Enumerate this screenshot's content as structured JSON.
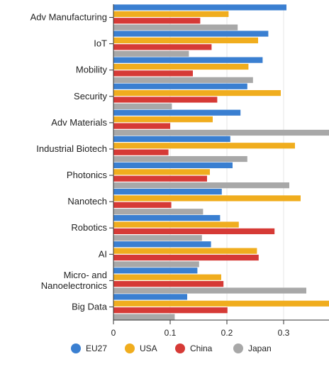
{
  "chart_data": {
    "type": "bar",
    "orientation": "horizontal",
    "categories": [
      [
        "Adv Manufacturing"
      ],
      [
        "IoT"
      ],
      [
        "Mobility"
      ],
      [
        "Security"
      ],
      [
        "Adv Materials"
      ],
      [
        "Industrial Biotech"
      ],
      [
        "Photonics"
      ],
      [
        "Nanotech"
      ],
      [
        "Robotics"
      ],
      [
        "AI"
      ],
      [
        "Micro- and",
        "Nanoelectronics"
      ],
      [
        "Big Data"
      ]
    ],
    "series": [
      {
        "name": "EU27",
        "color": "#3a7fd1",
        "values": [
          0.305,
          0.273,
          0.263,
          0.236,
          0.224,
          0.206,
          0.21,
          0.191,
          0.188,
          0.172,
          0.148,
          0.13
        ]
      },
      {
        "name": "USA",
        "color": "#f0ad1e",
        "values": [
          0.203,
          0.255,
          0.238,
          0.295,
          0.175,
          0.32,
          0.17,
          0.33,
          0.221,
          0.253,
          0.19,
          0.39
        ]
      },
      {
        "name": "China",
        "color": "#d63a36",
        "values": [
          0.153,
          0.173,
          0.14,
          0.183,
          0.1,
          0.097,
          0.165,
          0.102,
          0.284,
          0.256,
          0.194,
          0.201
        ]
      },
      {
        "name": "Japan",
        "color": "#a8a8a8",
        "values": [
          0.219,
          0.133,
          0.246,
          0.103,
          0.385,
          0.236,
          0.31,
          0.158,
          0.156,
          0.151,
          0.34,
          0.108
        ]
      }
    ],
    "xlim": [
      0,
      0.38
    ],
    "xticks": [
      0,
      0.1,
      0.2,
      0.3
    ],
    "xtick_labels": [
      "0",
      "0.1",
      "0.2",
      "0.3"
    ],
    "xlabel": "",
    "ylabel": "",
    "title": "",
    "grid": "vertical",
    "legend_position": "bottom"
  }
}
